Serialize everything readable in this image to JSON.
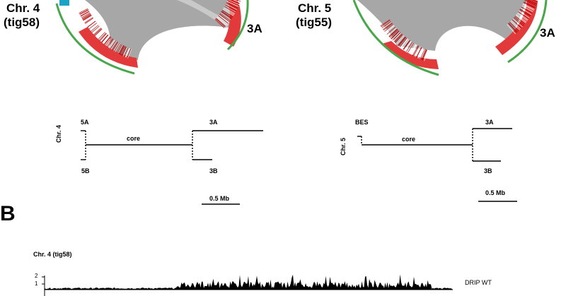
{
  "circos": {
    "left": {
      "chr": "Chr. 4",
      "tig": "(tig58)",
      "arm": "3A"
    },
    "right": {
      "chr": "Chr. 5",
      "tig": "(tig55)",
      "arm": "3A"
    }
  },
  "schematics": {
    "left": {
      "chr": "Chr. 4",
      "top_left": "5A",
      "bottom_left": "5B",
      "core": "core",
      "top_right": "3A",
      "bottom_right": "3B",
      "scale": "0.5 Mb"
    },
    "right": {
      "chr": "Chr. 5",
      "top_left": "BES",
      "core": "core",
      "top_right": "3A",
      "bottom_right": "3B",
      "scale": "0.5 Mb"
    }
  },
  "panel_b": {
    "label": "B",
    "track_title": "Chr. 4 (tig58)",
    "y_ticks": [
      "2",
      "1"
    ],
    "track_name": "DRIP WT"
  },
  "colors": {
    "ribbon": "#a7a7a7",
    "red_band": "#e23a3a",
    "green_ring": "#4aa64a",
    "cyan_block": "#19a3c4"
  }
}
